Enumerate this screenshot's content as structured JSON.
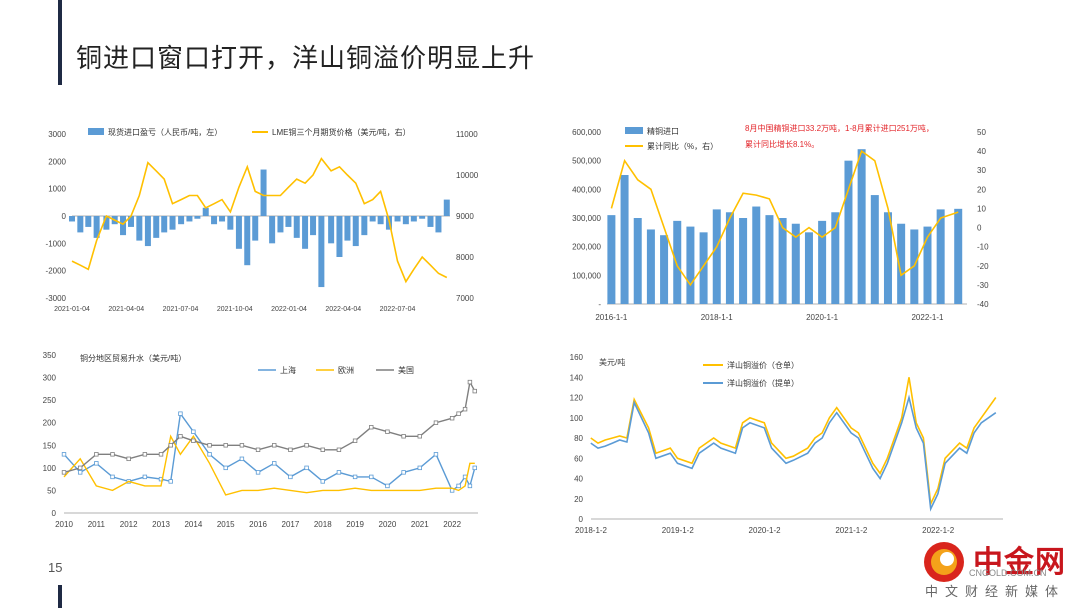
{
  "slide": {
    "title": "铜进口窗口打开，洋山铜溢价明显上升",
    "page_number": "15"
  },
  "colors": {
    "blue": "#5b9bd5",
    "orange": "#ffc000",
    "gray": "#7f7f7f",
    "red_note": "#e3262b"
  },
  "logo": {
    "name": "中金网",
    "url": "CNGOLD.COM.CN",
    "subtitle": "中文财经新媒体"
  },
  "chart_data": [
    {
      "type": "bar+line",
      "title": "",
      "series": [
        {
          "name": "现货进口盈亏（人民币/吨，左）",
          "kind": "bar",
          "axis": "left",
          "x": [
            "2021-01-04",
            "2021-01-18",
            "2021-02-01",
            "2021-02-15",
            "2021-03-01",
            "2021-03-15",
            "2021-03-29",
            "2021-04-12",
            "2021-04-26",
            "2021-05-10",
            "2021-05-24",
            "2021-06-07",
            "2021-06-21",
            "2021-07-05",
            "2021-07-19",
            "2021-08-02",
            "2021-08-16",
            "2021-08-30",
            "2021-09-13",
            "2021-09-27",
            "2021-10-11",
            "2021-10-25",
            "2021-11-08",
            "2021-11-22",
            "2021-12-06",
            "2021-12-20",
            "2022-01-03",
            "2022-01-17",
            "2022-01-31",
            "2022-02-14",
            "2022-02-28",
            "2022-03-14",
            "2022-03-28",
            "2022-04-11",
            "2022-04-25",
            "2022-05-09",
            "2022-05-23",
            "2022-06-06",
            "2022-06-20",
            "2022-07-04",
            "2022-07-18",
            "2022-08-01",
            "2022-08-15",
            "2022-08-29",
            "2022-09-12",
            "2022-09-26"
          ],
          "values": [
            -200,
            -600,
            -400,
            -800,
            -500,
            -300,
            -700,
            -400,
            -900,
            -1100,
            -800,
            -600,
            -500,
            -300,
            -200,
            -100,
            300,
            -300,
            -200,
            -500,
            -1200,
            -1800,
            -900,
            1700,
            -1000,
            -600,
            -400,
            -800,
            -1200,
            -700,
            -2600,
            -1000,
            -1500,
            -900,
            -1100,
            -700,
            -200,
            -300,
            -500,
            -200,
            -300,
            -200,
            -100,
            -400,
            -600,
            600
          ]
        },
        {
          "name": "LME铜三个月期货价格（美元/吨，右）",
          "kind": "line",
          "axis": "right",
          "x": [
            "2021-01-04",
            "2021-01-18",
            "2021-02-01",
            "2021-02-15",
            "2021-03-01",
            "2021-03-15",
            "2021-03-29",
            "2021-04-12",
            "2021-04-26",
            "2021-05-10",
            "2021-05-24",
            "2021-06-07",
            "2021-06-21",
            "2021-07-05",
            "2021-07-19",
            "2021-08-02",
            "2021-08-16",
            "2021-08-30",
            "2021-09-13",
            "2021-09-27",
            "2021-10-11",
            "2021-10-25",
            "2021-11-08",
            "2021-11-22",
            "2021-12-06",
            "2021-12-20",
            "2022-01-03",
            "2022-01-17",
            "2022-01-31",
            "2022-02-14",
            "2022-02-28",
            "2022-03-14",
            "2022-03-28",
            "2022-04-11",
            "2022-04-25",
            "2022-05-09",
            "2022-05-23",
            "2022-06-06",
            "2022-06-20",
            "2022-07-04",
            "2022-07-18",
            "2022-08-01",
            "2022-08-15",
            "2022-08-29",
            "2022-09-12",
            "2022-09-26"
          ],
          "values": [
            7900,
            7800,
            7700,
            8400,
            9000,
            8900,
            8800,
            9000,
            9500,
            10300,
            10100,
            9900,
            9300,
            9400,
            9500,
            9500,
            9200,
            9300,
            9400,
            9100,
            9700,
            10200,
            9600,
            9500,
            9500,
            9500,
            9700,
            9900,
            9800,
            10000,
            10400,
            10100,
            10200,
            10000,
            9800,
            9300,
            9400,
            9600,
            8900,
            7900,
            7400,
            7700,
            8000,
            7800,
            7600,
            7500
          ]
        }
      ],
      "y_left": {
        "min": -3000,
        "max": 3000,
        "ticks": [
          "3000",
          "2000",
          "1000",
          "0",
          "-1000",
          "-2000",
          "-3000"
        ]
      },
      "y_right": {
        "min": 7000,
        "max": 11000,
        "ticks": [
          "11000",
          "10000",
          "9000",
          "8000",
          "7000"
        ]
      },
      "x_ticks": [
        "2021-01-04",
        "2021-04-04",
        "2021-07-04",
        "2021-10-04",
        "2022-01-04",
        "2022-04-04",
        "2022-07-04"
      ]
    },
    {
      "type": "bar+line",
      "title": "",
      "annotation": "8月中国精铜进口33.2万吨，1-8月累计进口251万吨，累计同比增长8.1%。",
      "series": [
        {
          "name": "精铜进口",
          "kind": "bar",
          "axis": "left",
          "x": [
            "2016-01",
            "2016-04",
            "2016-07",
            "2016-10",
            "2017-01",
            "2017-04",
            "2017-07",
            "2017-10",
            "2018-01",
            "2018-04",
            "2018-07",
            "2018-10",
            "2019-01",
            "2019-04",
            "2019-07",
            "2019-10",
            "2020-01",
            "2020-04",
            "2020-07",
            "2020-10",
            "2021-01",
            "2021-04",
            "2021-07",
            "2021-10",
            "2022-01",
            "2022-04",
            "2022-08"
          ],
          "values": [
            310000,
            450000,
            300000,
            260000,
            240000,
            290000,
            270000,
            250000,
            330000,
            320000,
            300000,
            340000,
            310000,
            300000,
            280000,
            250000,
            290000,
            320000,
            500000,
            540000,
            380000,
            320000,
            280000,
            260000,
            270000,
            330000,
            332000
          ]
        },
        {
          "name": "累计同比（%，右）",
          "kind": "line",
          "axis": "right",
          "x": [
            "2016-01",
            "2016-04",
            "2016-07",
            "2016-10",
            "2017-01",
            "2017-04",
            "2017-07",
            "2017-10",
            "2018-01",
            "2018-04",
            "2018-07",
            "2018-10",
            "2019-01",
            "2019-04",
            "2019-07",
            "2019-10",
            "2020-01",
            "2020-04",
            "2020-07",
            "2020-10",
            "2021-01",
            "2021-04",
            "2021-07",
            "2021-10",
            "2022-01",
            "2022-04",
            "2022-08"
          ],
          "values": [
            10,
            35,
            25,
            20,
            0,
            -20,
            -30,
            -20,
            -10,
            5,
            18,
            17,
            15,
            0,
            -5,
            0,
            -5,
            0,
            20,
            40,
            35,
            10,
            -25,
            -20,
            -5,
            5,
            8.1
          ]
        }
      ],
      "y_left": {
        "min": 0,
        "max": 600000,
        "ticks": [
          "600,000",
          "500,000",
          "400,000",
          "300,000",
          "200,000",
          "100,000",
          "-"
        ]
      },
      "y_right": {
        "min": -40,
        "max": 50,
        "ticks": [
          "50",
          "40",
          "30",
          "20",
          "10",
          "0",
          "-10",
          "-20",
          "-30",
          "-40"
        ]
      },
      "x_ticks": [
        "2016-1-1",
        "2018-1-1",
        "2020-1-1",
        "2022-1-1"
      ]
    },
    {
      "type": "line",
      "title": "铜分地区贸易升水（美元/吨）",
      "series": [
        {
          "name": "上海",
          "values": [
            130,
            90,
            110,
            80,
            70,
            80,
            75,
            70,
            220,
            180,
            130,
            100,
            120,
            90,
            110,
            80,
            100,
            70,
            90,
            80,
            80,
            60,
            90,
            100,
            130,
            50,
            60,
            80,
            60,
            100
          ]
        },
        {
          "name": "欧洲",
          "values": [
            80,
            120,
            60,
            50,
            70,
            60,
            60,
            170,
            130,
            170,
            110,
            40,
            50,
            50,
            55,
            50,
            45,
            50,
            50,
            55,
            50,
            50,
            50,
            50,
            55,
            55,
            50,
            60,
            110,
            110
          ]
        },
        {
          "name": "美国",
          "values": [
            90,
            100,
            130,
            130,
            120,
            130,
            130,
            150,
            170,
            160,
            150,
            150,
            150,
            140,
            150,
            140,
            150,
            140,
            140,
            160,
            190,
            180,
            170,
            170,
            200,
            210,
            220,
            230,
            290,
            270
          ]
        }
      ],
      "x": [
        2010,
        2010.5,
        2011,
        2011.5,
        2012,
        2012.5,
        2013,
        2013.3,
        2013.6,
        2014,
        2014.5,
        2015,
        2015.5,
        2016,
        2016.5,
        2017,
        2017.5,
        2018,
        2018.5,
        2019,
        2019.5,
        2020,
        2020.5,
        2021,
        2021.5,
        2022,
        2022.2,
        2022.4,
        2022.55,
        2022.7
      ],
      "y": {
        "min": 0,
        "max": 350,
        "ticks": [
          "350",
          "300",
          "250",
          "200",
          "150",
          "100",
          "50",
          "0"
        ]
      },
      "x_ticks": [
        "2010",
        "2011",
        "2012",
        "2013",
        "2014",
        "2015",
        "2016",
        "2017",
        "2018",
        "2019",
        "2020",
        "2021",
        "2022"
      ]
    },
    {
      "type": "line",
      "title": "",
      "ylabel": "美元/吨",
      "series": [
        {
          "name": "洋山铜溢价（仓单）",
          "values": [
            80,
            75,
            78,
            80,
            82,
            80,
            118,
            90,
            65,
            70,
            60,
            55,
            70,
            80,
            75,
            70,
            95,
            100,
            95,
            75,
            60,
            62,
            70,
            80,
            85,
            100,
            110,
            90,
            85,
            70,
            55,
            45,
            60,
            100,
            140,
            95,
            80,
            15,
            30,
            60,
            75,
            70,
            90,
            100,
            120
          ]
        },
        {
          "name": "洋山铜溢价（提单）",
          "values": [
            75,
            70,
            72,
            75,
            78,
            76,
            115,
            85,
            60,
            65,
            55,
            50,
            65,
            75,
            70,
            65,
            90,
            95,
            90,
            70,
            55,
            58,
            65,
            75,
            80,
            95,
            105,
            85,
            80,
            65,
            50,
            40,
            55,
            95,
            120,
            90,
            75,
            10,
            25,
            55,
            70,
            65,
            85,
            95,
            105
          ]
        }
      ],
      "x": [
        "2018-01",
        "2018-02",
        "2018-03",
        "2018-04",
        "2018-05",
        "2018-06",
        "2018-07",
        "2018-09",
        "2018-10",
        "2018-12",
        "2019-01",
        "2019-03",
        "2019-04",
        "2019-06",
        "2019-07",
        "2019-09",
        "2019-10",
        "2019-11",
        "2020-01",
        "2020-02",
        "2020-04",
        "2020-05",
        "2020-07",
        "2020-08",
        "2020-09",
        "2020-10",
        "2020-11",
        "2021-01",
        "2021-02",
        "2021-03",
        "2021-04",
        "2021-05",
        "2021-06",
        "2021-08",
        "2021-09",
        "2021-10",
        "2021-11",
        "2021-12",
        "2022-01",
        "2022-02",
        "2022-04",
        "2022-05",
        "2022-06",
        "2022-07",
        "2022-09"
      ],
      "y": {
        "min": 0,
        "max": 160,
        "ticks": [
          "160",
          "140",
          "120",
          "100",
          "80",
          "60",
          "40",
          "20",
          "0"
        ]
      },
      "x_ticks": [
        "2018-1-2",
        "2019-1-2",
        "2020-1-2",
        "2021-1-2",
        "2022-1-2"
      ]
    }
  ]
}
